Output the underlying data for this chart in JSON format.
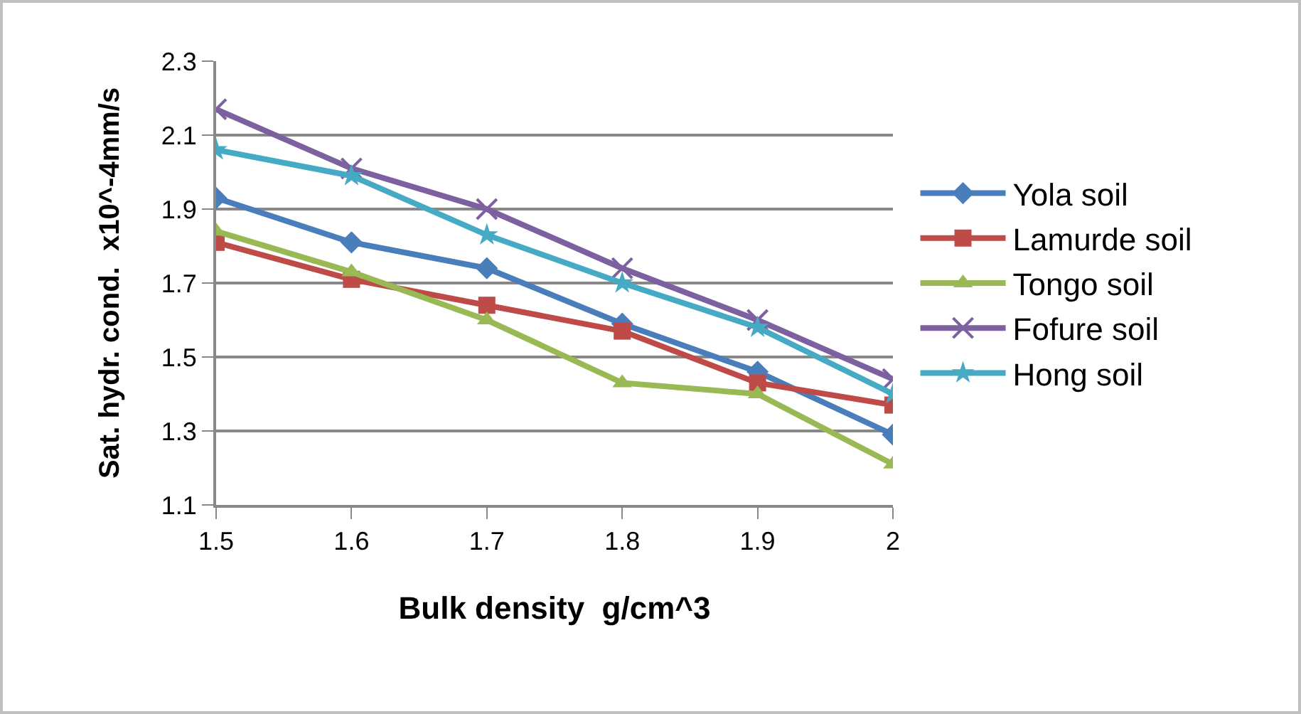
{
  "chart_data": {
    "type": "line",
    "xlabel": "Bulk density  g/cm^3",
    "ylabel": "Sat. hydr. cond.  x10^-4mm/s",
    "x": [
      1.5,
      1.6,
      1.7,
      1.8,
      1.9,
      2
    ],
    "xlim": [
      1.5,
      2
    ],
    "xticks": [
      1.5,
      1.6,
      1.7,
      1.8,
      1.9,
      2
    ],
    "ylim": [
      1.1,
      2.3
    ],
    "yticks": [
      1.1,
      1.3,
      1.5,
      1.7,
      1.9,
      2.1,
      2.3
    ],
    "grid": "y",
    "legend": "right",
    "line_style": "solid",
    "series": [
      {
        "name": "Yola soil",
        "color": "#4a7ebb",
        "marker": "diamond",
        "values": [
          1.93,
          1.81,
          1.74,
          1.59,
          1.46,
          1.29
        ]
      },
      {
        "name": "Lamurde soil",
        "color": "#be4b48",
        "marker": "square",
        "values": [
          1.81,
          1.71,
          1.64,
          1.57,
          1.43,
          1.37
        ]
      },
      {
        "name": "Tongo soil",
        "color": "#98b954",
        "marker": "triangle",
        "values": [
          1.84,
          1.73,
          1.6,
          1.43,
          1.4,
          1.21
        ]
      },
      {
        "name": "Fofure soil",
        "color": "#7d60a0",
        "marker": "cross",
        "values": [
          2.17,
          2.01,
          1.9,
          1.74,
          1.6,
          1.44
        ]
      },
      {
        "name": "Hong soil",
        "color": "#46aac5",
        "marker": "star",
        "values": [
          2.06,
          1.99,
          1.83,
          1.7,
          1.58,
          1.4
        ]
      }
    ]
  }
}
